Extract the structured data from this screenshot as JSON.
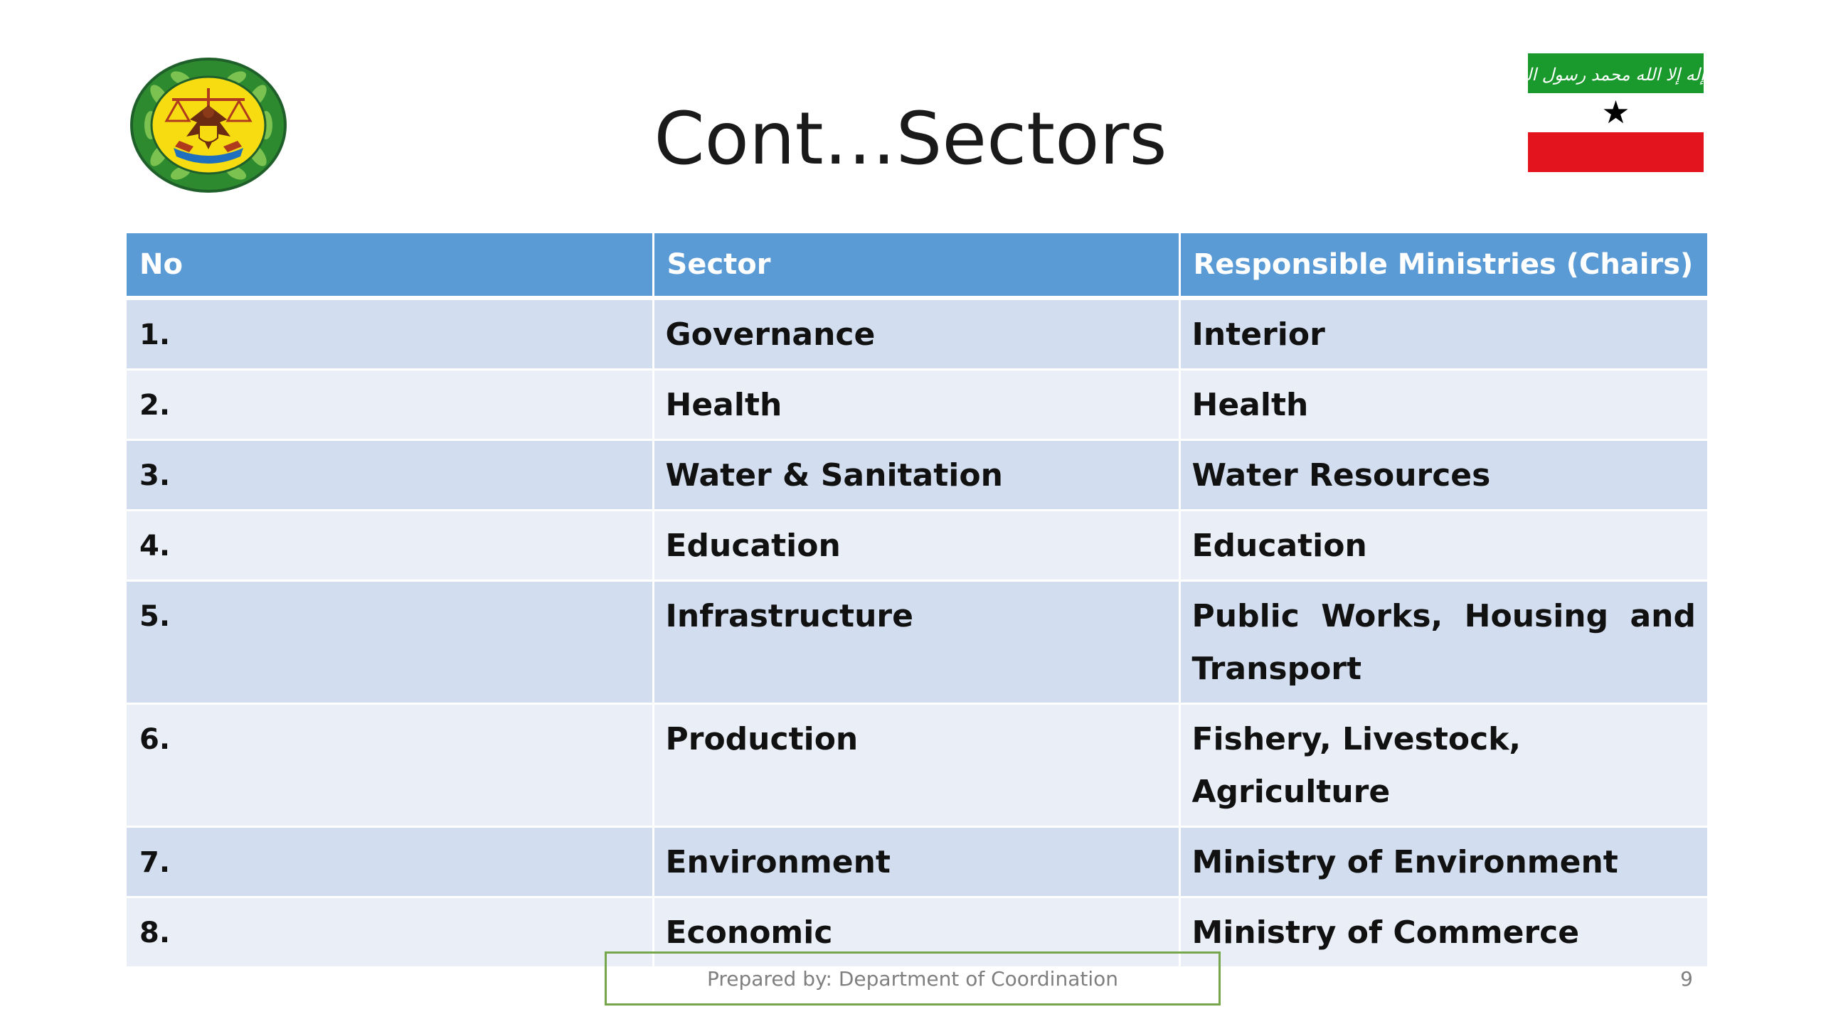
{
  "slide": {
    "title": "Cont…Sectors",
    "page_number": "9",
    "footer": "Prepared by: Department of Coordination"
  },
  "flag": {
    "inscription": "لا إله إلا الله محمد رسول الله",
    "colors": {
      "top": "#1a9a2c",
      "middle": "#ffffff",
      "bottom": "#e3141e",
      "star": "#000000"
    }
  },
  "emblem": {
    "icon": "coat-of-arms",
    "colors": {
      "wreath": "#2d8a2f",
      "field": "#f6dc10",
      "border": "#1f5f2a"
    }
  },
  "table": {
    "headers": [
      "No",
      "Sector",
      "Responsible  Ministries (Chairs)"
    ],
    "rows": [
      {
        "no": "1.",
        "sector": "Governance",
        "ministry": "Interior"
      },
      {
        "no": "2.",
        "sector": "Health",
        "ministry": "Health"
      },
      {
        "no": "3.",
        "sector": "Water & Sanitation",
        "ministry": "Water Resources"
      },
      {
        "no": "4.",
        "sector": "Education",
        "ministry": "Education"
      },
      {
        "no": "5.",
        "sector": "Infrastructure",
        "ministry": "Public Works, Housing and Transport"
      },
      {
        "no": "6.",
        "sector": "Production",
        "ministry": "Fishery, Livestock, Agriculture"
      },
      {
        "no": "7.",
        "sector": "Environment",
        "ministry": "Ministry of Environment"
      },
      {
        "no": "8.",
        "sector": "Economic",
        "ministry": "Ministry of Commerce"
      }
    ],
    "colors": {
      "header": "#5b9bd5",
      "row_odd": "#d2deef",
      "row_even": "#eaeff7"
    }
  }
}
